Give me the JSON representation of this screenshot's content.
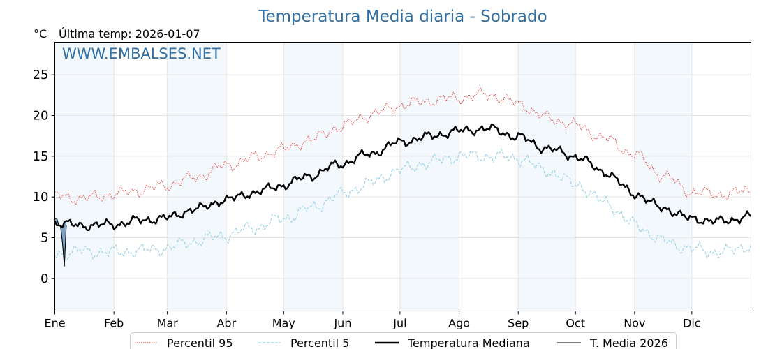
{
  "chart_data": {
    "type": "line",
    "title": "Temperatura Media diaria - Sobrado",
    "unit_label": "°C",
    "last_update": "Última temp: 2026-01-07",
    "watermark": "WWW.EMBALSES.NET",
    "x_months": [
      "Ene",
      "Feb",
      "Mar",
      "Abr",
      "May",
      "Jun",
      "Jul",
      "Ago",
      "Sep",
      "Oct",
      "Nov",
      "Dic"
    ],
    "month_start_days": [
      1,
      32,
      60,
      91,
      121,
      152,
      182,
      213,
      244,
      274,
      305,
      335
    ],
    "xlim": [
      1,
      366
    ],
    "ylim": [
      -4,
      29
    ],
    "yticks": [
      0,
      5,
      10,
      15,
      20,
      25
    ],
    "grid": true,
    "shaded_months": true,
    "legend_position": "bottom-center",
    "series": [
      {
        "name": "Percentil 95",
        "color": "#e8302c",
        "style": "dotted",
        "anchors": [
          [
            1,
            10.2
          ],
          [
            15,
            9.8
          ],
          [
            31,
            10.3
          ],
          [
            45,
            10.8
          ],
          [
            59,
            11.4
          ],
          [
            75,
            12.4
          ],
          [
            90,
            13.8
          ],
          [
            105,
            14.8
          ],
          [
            120,
            15.8
          ],
          [
            135,
            17.0
          ],
          [
            150,
            18.5
          ],
          [
            165,
            20.0
          ],
          [
            182,
            21.2
          ],
          [
            196,
            21.8
          ],
          [
            213,
            22.2
          ],
          [
            228,
            22.6
          ],
          [
            244,
            21.5
          ],
          [
            258,
            19.8
          ],
          [
            274,
            18.8
          ],
          [
            289,
            17.2
          ],
          [
            305,
            15.2
          ],
          [
            320,
            12.6
          ],
          [
            335,
            10.6
          ],
          [
            350,
            10.3
          ],
          [
            366,
            10.8
          ]
        ],
        "amplitude": 0.9
      },
      {
        "name": "Percentil 5",
        "color": "#9ed3e4",
        "style": "dashed",
        "anchors": [
          [
            1,
            3.0
          ],
          [
            15,
            3.3
          ],
          [
            31,
            3.2
          ],
          [
            45,
            3.4
          ],
          [
            59,
            3.7
          ],
          [
            75,
            4.6
          ],
          [
            90,
            5.3
          ],
          [
            105,
            6.2
          ],
          [
            120,
            7.3
          ],
          [
            135,
            8.6
          ],
          [
            150,
            10.2
          ],
          [
            165,
            11.6
          ],
          [
            182,
            13.3
          ],
          [
            196,
            14.2
          ],
          [
            213,
            15.0
          ],
          [
            228,
            15.0
          ],
          [
            244,
            14.8
          ],
          [
            258,
            13.3
          ],
          [
            274,
            11.6
          ],
          [
            289,
            9.4
          ],
          [
            305,
            6.6
          ],
          [
            320,
            4.6
          ],
          [
            335,
            3.6
          ],
          [
            350,
            3.2
          ],
          [
            366,
            4.0
          ]
        ],
        "amplitude": 1.0
      },
      {
        "name": "Temperatura Mediana",
        "color": "#000000",
        "style": "solid-thick",
        "anchors": [
          [
            1,
            6.8
          ],
          [
            15,
            6.5
          ],
          [
            31,
            6.6
          ],
          [
            45,
            7.1
          ],
          [
            59,
            7.4
          ],
          [
            75,
            8.5
          ],
          [
            90,
            9.6
          ],
          [
            105,
            10.5
          ],
          [
            120,
            11.4
          ],
          [
            135,
            12.6
          ],
          [
            150,
            14.0
          ],
          [
            165,
            15.2
          ],
          [
            182,
            16.7
          ],
          [
            196,
            17.4
          ],
          [
            213,
            18.1
          ],
          [
            228,
            18.4
          ],
          [
            244,
            17.4
          ],
          [
            258,
            16.0
          ],
          [
            274,
            15.0
          ],
          [
            289,
            13.1
          ],
          [
            305,
            10.4
          ],
          [
            320,
            8.6
          ],
          [
            335,
            7.3
          ],
          [
            350,
            7.0
          ],
          [
            366,
            7.6
          ]
        ],
        "amplitude": 0.7
      },
      {
        "name": "T. Media 2026",
        "color": "#000000",
        "style": "solid-thin",
        "x": [
          1,
          2,
          3,
          4,
          5,
          6,
          7
        ],
        "values": [
          7.3,
          7.4,
          6.6,
          6.4,
          4.4,
          1.5,
          6.5
        ],
        "fill_color": "#6f99bf"
      }
    ]
  }
}
